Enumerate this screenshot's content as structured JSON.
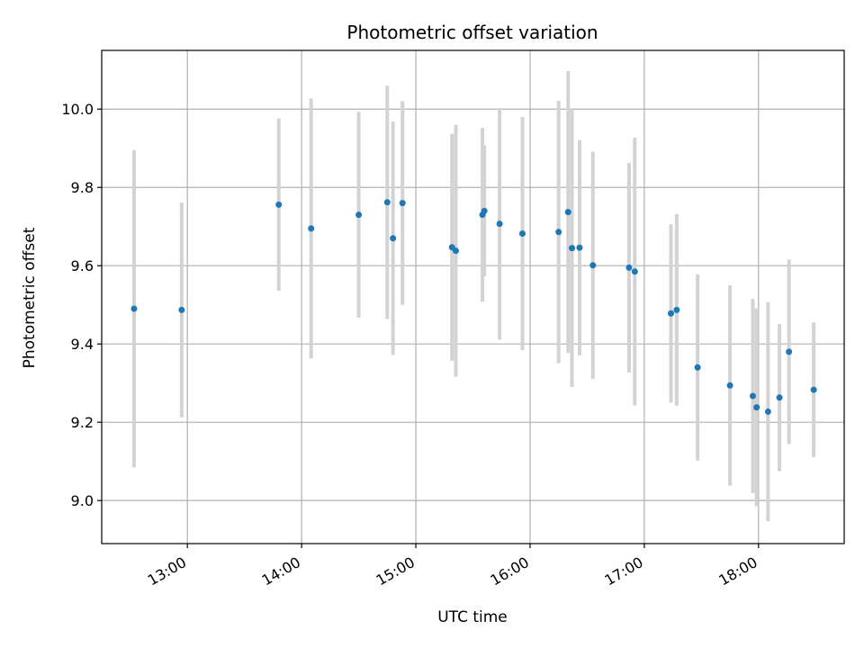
{
  "chart_data": {
    "type": "scatter",
    "title": "Photometric offset variation",
    "xlabel": "UTC time",
    "ylabel": "Photometric offset",
    "x_ticks": [
      "13:00",
      "14:00",
      "15:00",
      "16:00",
      "17:00",
      "18:00"
    ],
    "y_ticks": [
      "9.0",
      "9.2",
      "9.4",
      "9.6",
      "9.8",
      "10.0"
    ],
    "xlim": [
      "12:15",
      "18:45"
    ],
    "ylim": [
      8.89,
      10.15
    ],
    "grid": true,
    "colors": {
      "point": "#1f77b4",
      "errorbar": "#d3d3d3",
      "grid": "#b0b0b0",
      "frame": "#000000"
    },
    "series": [
      {
        "points": [
          {
            "x": "12:32",
            "y": 9.49,
            "yerr": 0.405
          },
          {
            "x": "12:57",
            "y": 9.487,
            "yerr": 0.274
          },
          {
            "x": "13:48",
            "y": 9.756,
            "yerr": 0.22
          },
          {
            "x": "14:05",
            "y": 9.695,
            "yerr": 0.332
          },
          {
            "x": "14:30",
            "y": 9.73,
            "yerr": 0.263
          },
          {
            "x": "14:45",
            "y": 9.762,
            "yerr": 0.298
          },
          {
            "x": "14:48",
            "y": 9.67,
            "yerr": 0.298
          },
          {
            "x": "14:53",
            "y": 9.76,
            "yerr": 0.26
          },
          {
            "x": "15:19",
            "y": 9.647,
            "yerr": 0.29
          },
          {
            "x": "15:21",
            "y": 9.638,
            "yerr": 0.322
          },
          {
            "x": "15:35",
            "y": 9.73,
            "yerr": 0.222
          },
          {
            "x": "15:36",
            "y": 9.74,
            "yerr": 0.167
          },
          {
            "x": "15:44",
            "y": 9.707,
            "yerr": 0.296
          },
          {
            "x": "15:56",
            "y": 9.682,
            "yerr": 0.298
          },
          {
            "x": "16:15",
            "y": 9.686,
            "yerr": 0.335
          },
          {
            "x": "16:20",
            "y": 9.737,
            "yerr": 0.36
          },
          {
            "x": "16:22",
            "y": 9.645,
            "yerr": 0.355
          },
          {
            "x": "16:26",
            "y": 9.646,
            "yerr": 0.275
          },
          {
            "x": "16:33",
            "y": 9.601,
            "yerr": 0.29
          },
          {
            "x": "16:52",
            "y": 9.595,
            "yerr": 0.268
          },
          {
            "x": "16:55",
            "y": 9.585,
            "yerr": 0.342
          },
          {
            "x": "17:14",
            "y": 9.478,
            "yerr": 0.228
          },
          {
            "x": "17:17",
            "y": 9.487,
            "yerr": 0.245
          },
          {
            "x": "17:28",
            "y": 9.34,
            "yerr": 0.238
          },
          {
            "x": "17:45",
            "y": 9.294,
            "yerr": 0.256
          },
          {
            "x": "17:57",
            "y": 9.267,
            "yerr": 0.248
          },
          {
            "x": "17:59",
            "y": 9.238,
            "yerr": 0.253
          },
          {
            "x": "18:05",
            "y": 9.227,
            "yerr": 0.28
          },
          {
            "x": "18:11",
            "y": 9.263,
            "yerr": 0.188
          },
          {
            "x": "18:16",
            "y": 9.38,
            "yerr": 0.236
          },
          {
            "x": "18:29",
            "y": 9.283,
            "yerr": 0.172
          }
        ]
      }
    ]
  }
}
